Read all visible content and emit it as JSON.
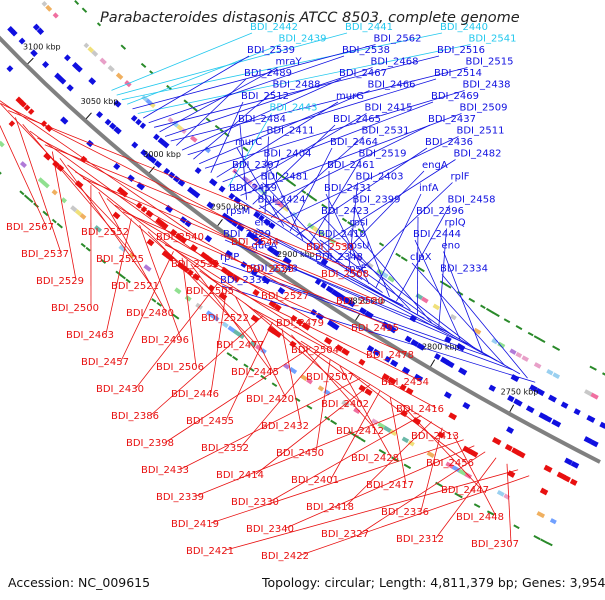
{
  "title": "Parabacteroides distasonis ATCC 8503, complete genome",
  "footer": {
    "accession_label": "Accession:",
    "accession": "NC_009615",
    "topology_label": "Topology:",
    "topology": "circular;",
    "length_label": "Length:",
    "length": "4,811,379 bp;",
    "genes_label": "Genes:",
    "genes": "3,954"
  },
  "colors": {
    "forward_strand": "#1010e0",
    "reverse_strand": "#e81010",
    "highlight": "#22c8ee",
    "backbone": "#808080",
    "rna_marker": "#2a8a2a"
  },
  "ticks": [
    "3100 kbp",
    "3050 kbp",
    "3000 kbp",
    "2950 kbp",
    "2900 kbp",
    "2850 kbp",
    "2800 kbp",
    "2750 kbp"
  ],
  "genes_forward": [
    {
      "name": "BDI_2442",
      "highlight": true
    },
    {
      "name": "BDI_2441",
      "highlight": true
    },
    {
      "name": "BDI_2440",
      "highlight": true
    },
    {
      "name": "BDI_2439",
      "highlight": true
    },
    {
      "name": "BDI_2562"
    },
    {
      "name": "BDI_2541",
      "highlight": true
    },
    {
      "name": "BDI_2539"
    },
    {
      "name": "BDI_2538"
    },
    {
      "name": "BDI_2516"
    },
    {
      "name": "mraY"
    },
    {
      "name": "BDI_2468"
    },
    {
      "name": "BDI_2515"
    },
    {
      "name": "BDI_2489"
    },
    {
      "name": "BDI_2467"
    },
    {
      "name": "BDI_2514"
    },
    {
      "name": "BDI_2488"
    },
    {
      "name": "BDI_2466"
    },
    {
      "name": "BDI_2438"
    },
    {
      "name": "BDI_2512"
    },
    {
      "name": "murG"
    },
    {
      "name": "BDI_2469"
    },
    {
      "name": "BDI_2443",
      "highlight": true
    },
    {
      "name": "BDI_2415"
    },
    {
      "name": "BDI_2509"
    },
    {
      "name": "BDI_2484"
    },
    {
      "name": "BDI_2465"
    },
    {
      "name": "BDI_2437"
    },
    {
      "name": "BDI_2411"
    },
    {
      "name": "BDI_2531"
    },
    {
      "name": "BDI_2511"
    },
    {
      "name": "murC"
    },
    {
      "name": "BDI_2464"
    },
    {
      "name": "BDI_2436"
    },
    {
      "name": "BDI_2404"
    },
    {
      "name": "BDI_2519"
    },
    {
      "name": "BDI_2482"
    },
    {
      "name": "BDI_2397"
    },
    {
      "name": "BDI_2461"
    },
    {
      "name": "engA"
    },
    {
      "name": "BDI_2481"
    },
    {
      "name": "BDI_2403"
    },
    {
      "name": "rplF"
    },
    {
      "name": "BDI_2459"
    },
    {
      "name": "BDI_2431"
    },
    {
      "name": "infA"
    },
    {
      "name": "BDI_2424"
    },
    {
      "name": "BDI_2399"
    },
    {
      "name": "BDI_2458"
    },
    {
      "name": "rpsM"
    },
    {
      "name": "BDI_2423"
    },
    {
      "name": "BDI_2396"
    },
    {
      "name": "era"
    },
    {
      "name": "rpsI"
    },
    {
      "name": "rplQ"
    },
    {
      "name": "BDI_2429"
    },
    {
      "name": "BDI_2410"
    },
    {
      "name": "BDI_2444"
    },
    {
      "name": "queA"
    },
    {
      "name": "rpsU"
    },
    {
      "name": "eno"
    },
    {
      "name": "rplP"
    },
    {
      "name": "BDI_2348"
    },
    {
      "name": "clpX"
    },
    {
      "name": "BDI_2343"
    },
    {
      "name": "rpsE"
    },
    {
      "name": "BDI_2334"
    },
    {
      "name": "BDI_2331"
    }
  ],
  "genes_reverse": [
    "BDI_2567",
    "BDI_2552",
    "BDI_2540",
    "BDI_2544",
    "BDI_2530",
    "BDI_2537",
    "BDI_2525",
    "BDI_2532",
    "BDI_2523",
    "BDI_2508",
    "BDI_2529",
    "BDI_2521",
    "BDI_2505",
    "BDI_2527",
    "BDI_2520",
    "BDI_2500",
    "BDI_2480",
    "BDI_2522",
    "BDI_2479",
    "BDI_2495",
    "BDI_2463",
    "BDI_2496",
    "BDI_2477",
    "BDI_2504",
    "BDI_2478",
    "BDI_2457",
    "BDI_2506",
    "BDI_2445",
    "BDI_2507",
    "BDI_2454",
    "BDI_2430",
    "BDI_2446",
    "BDI_2420",
    "BDI_2402",
    "BDI_2416",
    "BDI_2386",
    "BDI_2455",
    "BDI_2432",
    "BDI_2412",
    "BDI_2413",
    "BDI_2398",
    "BDI_2352",
    "BDI_2450",
    "BDI_2428",
    "BDI_2456",
    "BDI_2433",
    "BDI_2414",
    "BDI_2401",
    "BDI_2417",
    "BDI_2447",
    "BDI_2339",
    "BDI_2330",
    "BDI_2418",
    "BDI_2336",
    "BDI_2448",
    "BDI_2419",
    "BDI_2340",
    "BDI_2327",
    "BDI_2312",
    "BDI_2307",
    "BDI_2421",
    "BDI_2422"
  ]
}
